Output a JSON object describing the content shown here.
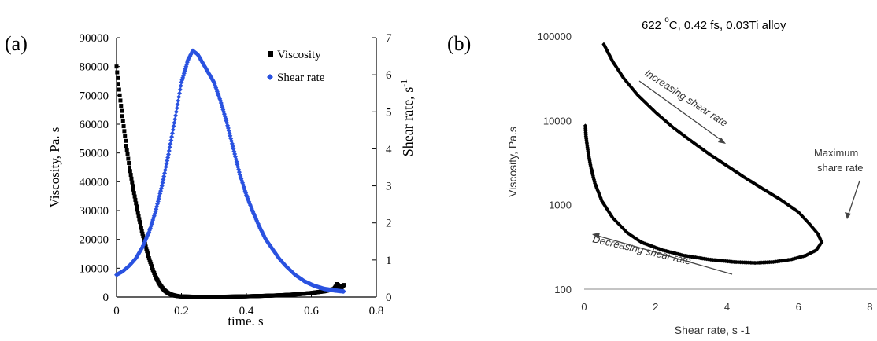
{
  "chart_data": [
    {
      "panel_label": "(a)",
      "type": "scatter",
      "title": "",
      "xlabel": "time. s",
      "ylabel": "Viscosity, Pa. s",
      "y2label": "Shear rate, s",
      "y2label_sup": "-1",
      "xlim": [
        0,
        0.8
      ],
      "ylim": [
        0,
        90000
      ],
      "y2lim": [
        0,
        7
      ],
      "x_ticks": [
        "0",
        "0.2",
        "0.4",
        "0.6",
        "0.8"
      ],
      "y_ticks": [
        "0",
        "10000",
        "20000",
        "30000",
        "40000",
        "50000",
        "60000",
        "70000",
        "80000",
        "90000"
      ],
      "y2_ticks": [
        "0",
        "1",
        "2",
        "3",
        "4",
        "5",
        "6",
        "7"
      ],
      "grid": false,
      "legend_position": "top-right",
      "series": [
        {
          "name": "Viscosity",
          "axis": "left",
          "color": "#000000",
          "marker": "square",
          "points": [
            [
              0,
              80000
            ],
            [
              0.01,
              70000
            ],
            [
              0.02,
              61000
            ],
            [
              0.03,
              52500
            ],
            [
              0.04,
              45000
            ],
            [
              0.05,
              38500
            ],
            [
              0.06,
              32500
            ],
            [
              0.07,
              27000
            ],
            [
              0.08,
              22000
            ],
            [
              0.09,
              17500
            ],
            [
              0.1,
              13500
            ],
            [
              0.11,
              10000
            ],
            [
              0.12,
              7200
            ],
            [
              0.13,
              5000
            ],
            [
              0.14,
              3300
            ],
            [
              0.15,
              2100
            ],
            [
              0.16,
              1300
            ],
            [
              0.17,
              800
            ],
            [
              0.18,
              500
            ],
            [
              0.19,
              300
            ],
            [
              0.2,
              200
            ],
            [
              0.25,
              100
            ],
            [
              0.3,
              100
            ],
            [
              0.35,
              150
            ],
            [
              0.4,
              250
            ],
            [
              0.45,
              400
            ],
            [
              0.5,
              600
            ],
            [
              0.55,
              900
            ],
            [
              0.6,
              1400
            ],
            [
              0.64,
              2000
            ],
            [
              0.67,
              2800
            ],
            [
              0.68,
              4500
            ],
            [
              0.69,
              3000
            ],
            [
              0.7,
              4200
            ]
          ]
        },
        {
          "name": "Shear rate",
          "axis": "right",
          "color": "#2a52e0",
          "marker": "diamond",
          "points": [
            [
              0,
              0.6
            ],
            [
              0.02,
              0.7
            ],
            [
              0.04,
              0.85
            ],
            [
              0.06,
              1.05
            ],
            [
              0.08,
              1.35
            ],
            [
              0.1,
              1.75
            ],
            [
              0.12,
              2.3
            ],
            [
              0.14,
              3.0
            ],
            [
              0.16,
              3.85
            ],
            [
              0.18,
              4.8
            ],
            [
              0.2,
              5.8
            ],
            [
              0.22,
              6.4
            ],
            [
              0.235,
              6.65
            ],
            [
              0.25,
              6.55
            ],
            [
              0.27,
              6.25
            ],
            [
              0.29,
              5.95
            ],
            [
              0.3,
              5.8
            ],
            [
              0.32,
              5.3
            ],
            [
              0.34,
              4.7
            ],
            [
              0.36,
              4.0
            ],
            [
              0.38,
              3.3
            ],
            [
              0.4,
              2.75
            ],
            [
              0.42,
              2.3
            ],
            [
              0.44,
              1.9
            ],
            [
              0.46,
              1.55
            ],
            [
              0.48,
              1.3
            ],
            [
              0.5,
              1.05
            ],
            [
              0.52,
              0.85
            ],
            [
              0.55,
              0.6
            ],
            [
              0.58,
              0.42
            ],
            [
              0.61,
              0.3
            ],
            [
              0.64,
              0.22
            ],
            [
              0.67,
              0.18
            ],
            [
              0.7,
              0.15
            ]
          ]
        }
      ]
    },
    {
      "panel_label": "(b)",
      "type": "scatter",
      "title": "622 °C, 0.42 fs, 0.03Ti alloy",
      "title_main": "622 ",
      "title_deg": "o",
      "title_rest": "C, 0.42 fs, 0.03Ti alloy",
      "xlabel": "Shear rate, s -1",
      "ylabel": "Viscosity, Pa.s",
      "xlim": [
        0,
        8
      ],
      "ylim": [
        100,
        100000
      ],
      "y_scale": "log",
      "x_ticks": [
        "0",
        "2",
        "4",
        "6",
        "8"
      ],
      "y_ticks": [
        "100",
        "1000",
        "10000",
        "100000"
      ],
      "grid": false,
      "annotations": [
        "Increasing shear rate",
        "Decreasing shear rate",
        "Maximum",
        "share rate"
      ],
      "series": [
        {
          "name": "",
          "color": "#000000",
          "marker": "diamond",
          "points": [
            [
              0.55,
              80000
            ],
            [
              0.8,
              50000
            ],
            [
              1.1,
              32000
            ],
            [
              1.5,
              20000
            ],
            [
              2.0,
              12500
            ],
            [
              2.5,
              8200
            ],
            [
              3.0,
              5700
            ],
            [
              3.5,
              4000
            ],
            [
              4.0,
              2900
            ],
            [
              4.5,
              2100
            ],
            [
              5.0,
              1550
            ],
            [
              5.5,
              1150
            ],
            [
              6.0,
              820
            ],
            [
              6.3,
              600
            ],
            [
              6.55,
              450
            ],
            [
              6.65,
              360
            ],
            [
              6.5,
              290
            ],
            [
              6.2,
              250
            ],
            [
              5.8,
              225
            ],
            [
              5.3,
              210
            ],
            [
              4.8,
              205
            ],
            [
              4.2,
              210
            ],
            [
              3.5,
              225
            ],
            [
              2.8,
              250
            ],
            [
              2.2,
              290
            ],
            [
              1.6,
              360
            ],
            [
              1.2,
              470
            ],
            [
              0.8,
              700
            ],
            [
              0.5,
              1100
            ],
            [
              0.3,
              1800
            ],
            [
              0.18,
              2900
            ],
            [
              0.1,
              4500
            ],
            [
              0.05,
              6500
            ],
            [
              0.03,
              9000
            ]
          ]
        }
      ]
    }
  ]
}
